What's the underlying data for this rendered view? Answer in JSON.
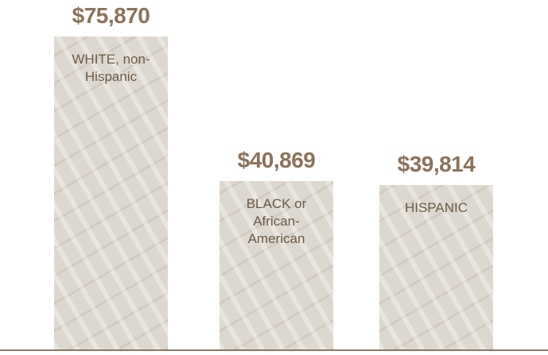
{
  "chart_data": {
    "type": "bar",
    "categories": [
      "WHITE, non-Hispanic",
      "BLACK or African-American",
      "HISPANIC"
    ],
    "values": [
      75870,
      40869,
      39814
    ],
    "value_labels": [
      "$75,870",
      "$40,869",
      "$39,814"
    ],
    "color": "#ddd8cf"
  }
}
